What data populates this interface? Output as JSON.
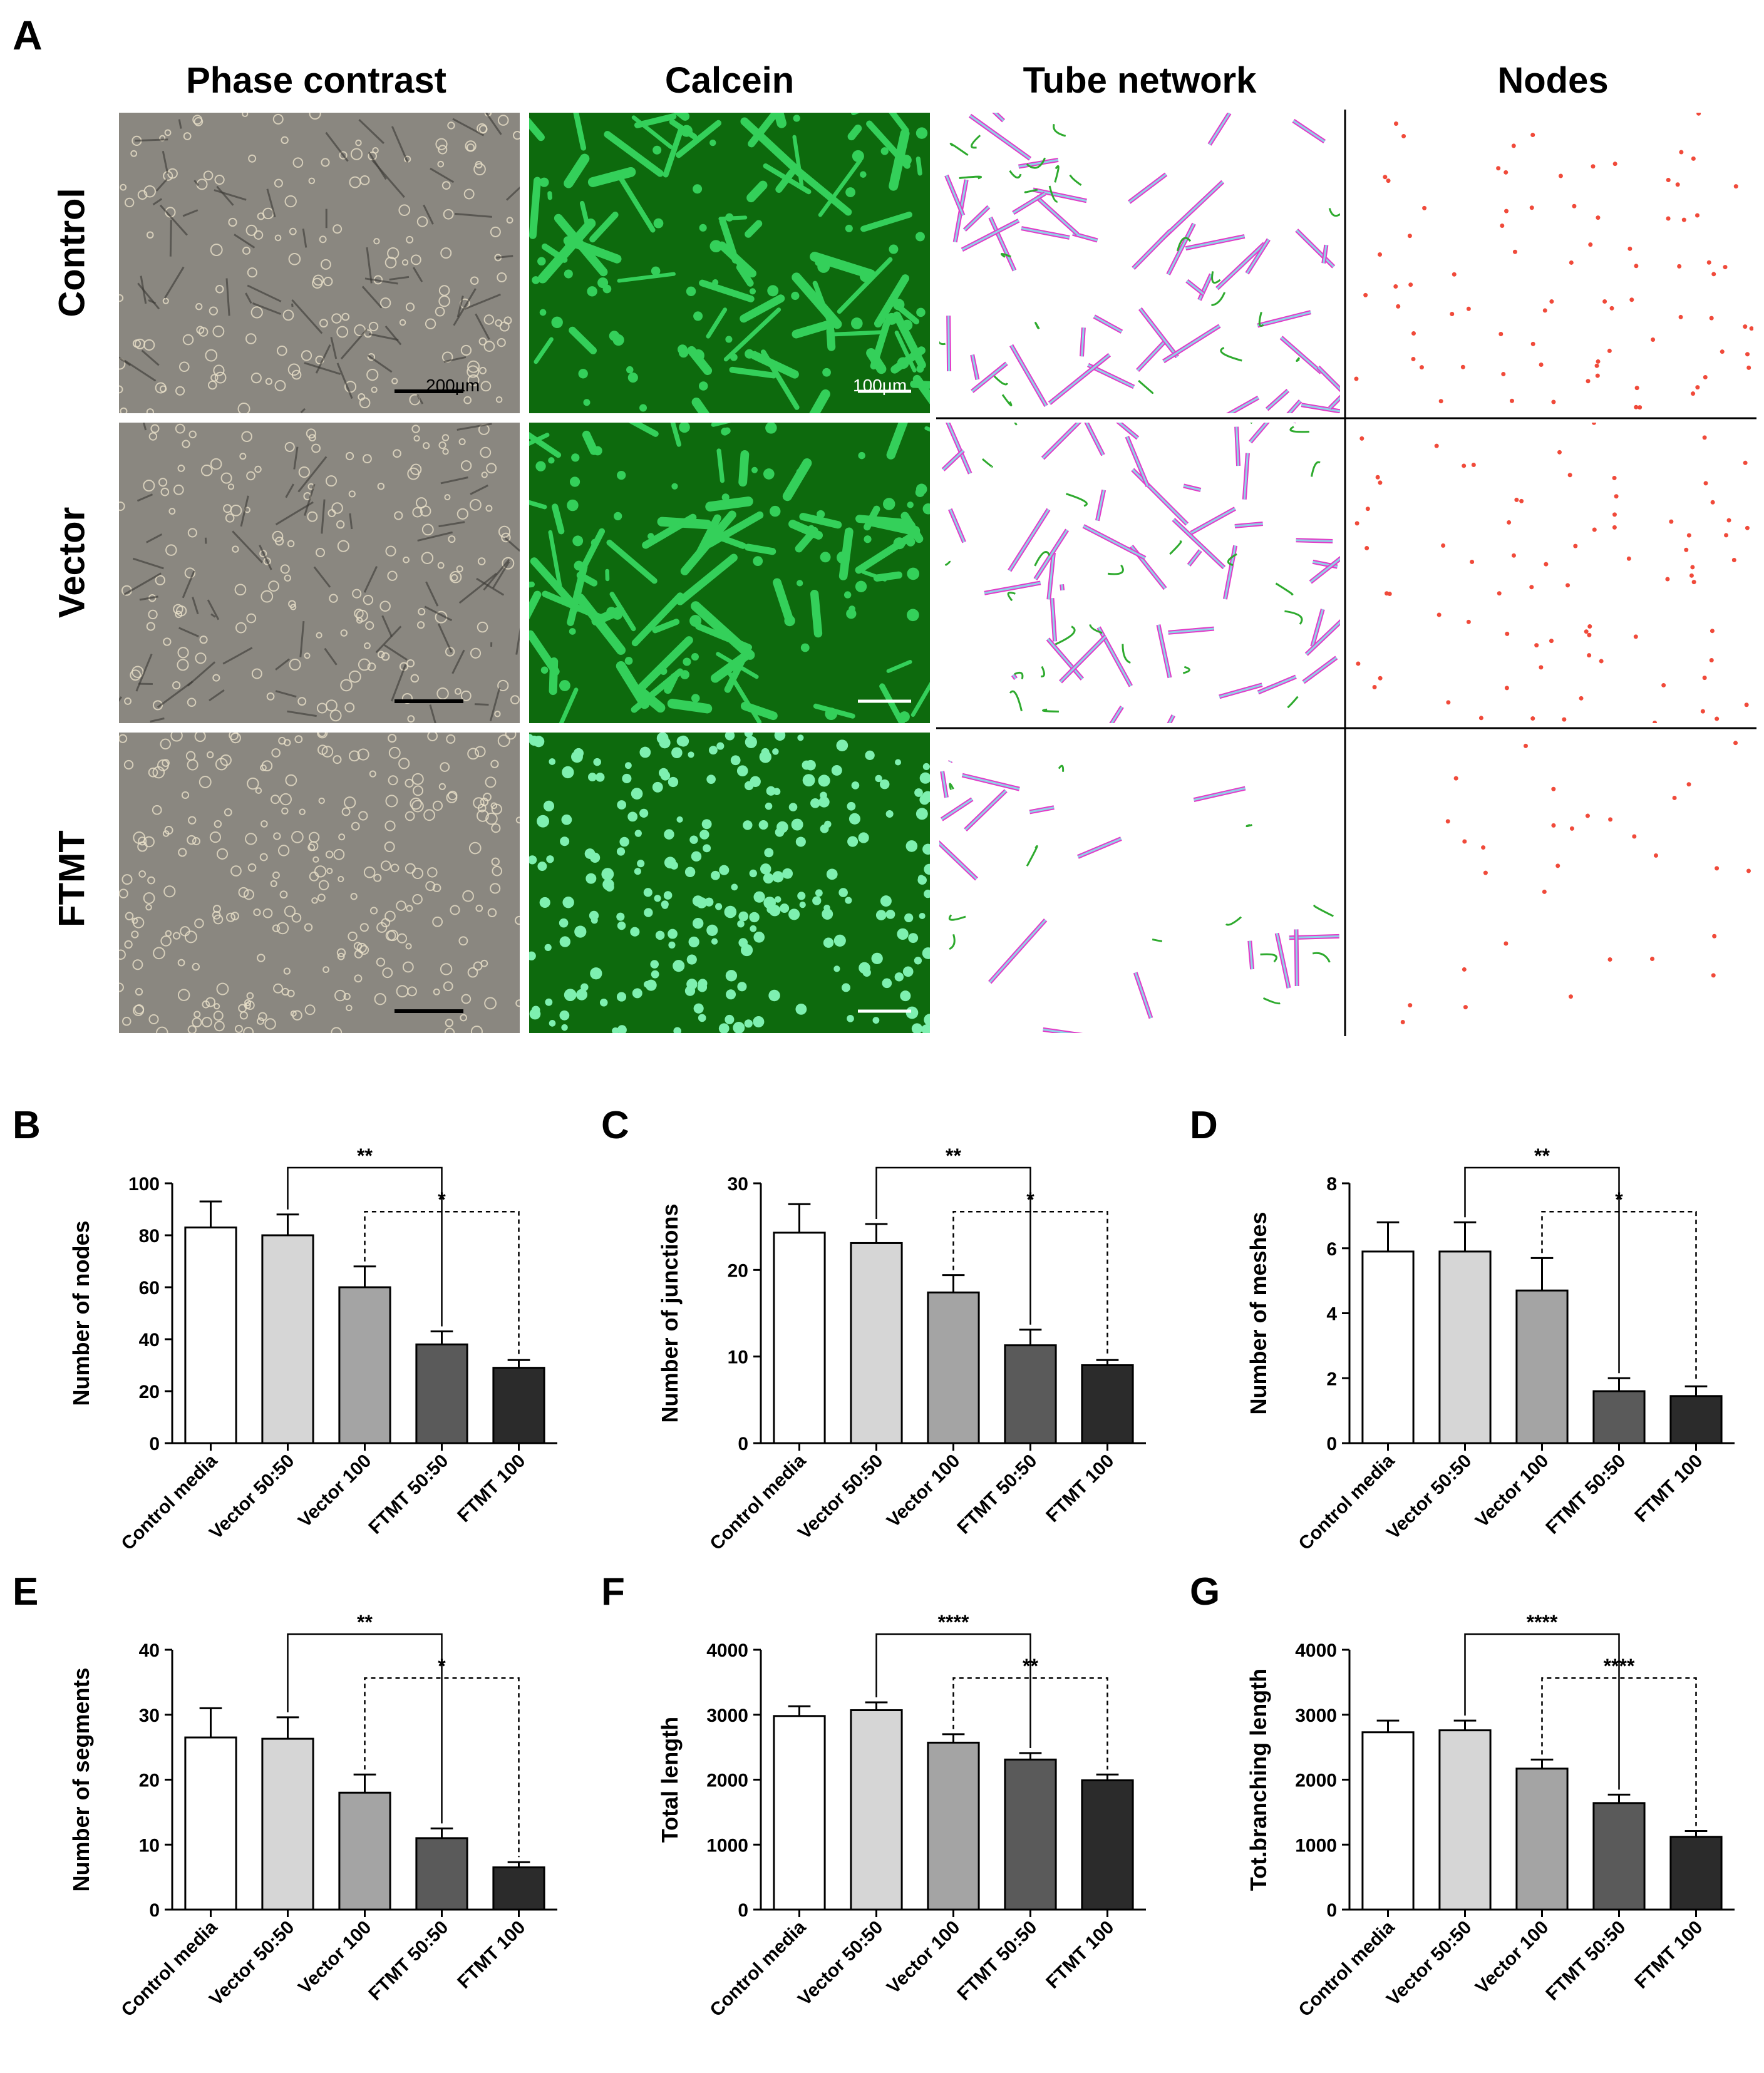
{
  "figure": {
    "panel_a_letter": "A",
    "columns": [
      "Phase contrast",
      "Calcein",
      "Tube network",
      "Nodes"
    ],
    "rows": [
      "Control",
      "Vector",
      "FTMT"
    ],
    "scale_bars": [
      "200µm",
      "100µm"
    ],
    "colors": {
      "phase_bg": "#8a8780",
      "calcein_bg": "#0d6a0d",
      "calcein_cell": "#34d05a",
      "tube_outline": "#e23cc8",
      "tube_inner": "#8fd3e8",
      "branch": "#2eaa2e",
      "node": "#f04a3a"
    }
  },
  "chart_data": [
    {
      "panel": "B",
      "type": "bar",
      "categories": [
        "Control media",
        "Vector 50:50",
        "Vector 100",
        "FTMT 50:50",
        "FTMT 100"
      ],
      "values": [
        83,
        80,
        60,
        38,
        29
      ],
      "errors": [
        10,
        8,
        8,
        5,
        3
      ],
      "ylabel": "Number of nodes",
      "ylim": [
        0,
        100
      ],
      "yticks": [
        0,
        20,
        40,
        60,
        80,
        100
      ],
      "bar_colors": [
        "#ffffff",
        "#d6d6d6",
        "#a4a4a4",
        "#5a5a5a",
        "#2b2b2b"
      ],
      "comparisons": [
        {
          "from": 1,
          "to": 3,
          "label": "**",
          "style": "solid"
        },
        {
          "from": 2,
          "to": 4,
          "label": "*",
          "style": "dashed"
        }
      ]
    },
    {
      "panel": "C",
      "type": "bar",
      "categories": [
        "Control media",
        "Vector 50:50",
        "Vector 100",
        "FTMT 50:50",
        "FTMT 100"
      ],
      "values": [
        24.3,
        23.1,
        17.4,
        11.3,
        9.0
      ],
      "errors": [
        3.3,
        2.2,
        2.0,
        1.8,
        0.6
      ],
      "ylabel": "Number of junctions",
      "ylim": [
        0,
        30
      ],
      "yticks": [
        0,
        10,
        20,
        30
      ],
      "bar_colors": [
        "#ffffff",
        "#d6d6d6",
        "#a4a4a4",
        "#5a5a5a",
        "#2b2b2b"
      ],
      "comparisons": [
        {
          "from": 1,
          "to": 3,
          "label": "**",
          "style": "solid"
        },
        {
          "from": 2,
          "to": 4,
          "label": "*",
          "style": "dashed"
        }
      ]
    },
    {
      "panel": "D",
      "type": "bar",
      "categories": [
        "Control media",
        "Vector 50:50",
        "Vector 100",
        "FTMT 50:50",
        "FTMT 100"
      ],
      "values": [
        5.9,
        5.9,
        4.7,
        1.6,
        1.45
      ],
      "errors": [
        0.9,
        0.9,
        1.0,
        0.4,
        0.3
      ],
      "ylabel": "Number of meshes",
      "ylim": [
        0,
        8
      ],
      "yticks": [
        0,
        2,
        4,
        6,
        8
      ],
      "bar_colors": [
        "#ffffff",
        "#d6d6d6",
        "#a4a4a4",
        "#5a5a5a",
        "#2b2b2b"
      ],
      "comparisons": [
        {
          "from": 1,
          "to": 3,
          "label": "**",
          "style": "solid"
        },
        {
          "from": 2,
          "to": 4,
          "label": "*",
          "style": "dashed"
        }
      ]
    },
    {
      "panel": "E",
      "type": "bar",
      "categories": [
        "Control media",
        "Vector 50:50",
        "Vector 100",
        "FTMT 50:50",
        "FTMT 100"
      ],
      "values": [
        26.5,
        26.3,
        18,
        11,
        6.5
      ],
      "errors": [
        4.5,
        3.3,
        2.8,
        1.5,
        0.8
      ],
      "ylabel": "Number of segments",
      "ylim": [
        0,
        40
      ],
      "yticks": [
        0,
        10,
        20,
        30,
        40
      ],
      "bar_colors": [
        "#ffffff",
        "#d6d6d6",
        "#a4a4a4",
        "#5a5a5a",
        "#2b2b2b"
      ],
      "comparisons": [
        {
          "from": 1,
          "to": 3,
          "label": "**",
          "style": "solid"
        },
        {
          "from": 2,
          "to": 4,
          "label": "*",
          "style": "dashed"
        }
      ]
    },
    {
      "panel": "F",
      "type": "bar",
      "categories": [
        "Control media",
        "Vector 50:50",
        "Vector 100",
        "FTMT 50:50",
        "FTMT 100"
      ],
      "values": [
        2980,
        3070,
        2570,
        2310,
        1990
      ],
      "errors": [
        150,
        120,
        130,
        100,
        90
      ],
      "ylabel": "Total length",
      "ylim": [
        0,
        4000
      ],
      "yticks": [
        0,
        1000,
        2000,
        3000,
        4000
      ],
      "bar_colors": [
        "#ffffff",
        "#d6d6d6",
        "#a4a4a4",
        "#5a5a5a",
        "#2b2b2b"
      ],
      "comparisons": [
        {
          "from": 1,
          "to": 3,
          "label": "****",
          "style": "solid"
        },
        {
          "from": 2,
          "to": 4,
          "label": "**",
          "style": "dashed"
        }
      ]
    },
    {
      "panel": "G",
      "type": "bar",
      "categories": [
        "Control media",
        "Vector 50:50",
        "Vector 100",
        "FTMT 50:50",
        "FTMT 100"
      ],
      "values": [
        2730,
        2760,
        2170,
        1640,
        1120
      ],
      "errors": [
        180,
        150,
        140,
        130,
        90
      ],
      "ylabel": "Tot.branching length",
      "ylim": [
        0,
        4000
      ],
      "yticks": [
        0,
        1000,
        2000,
        3000,
        4000
      ],
      "bar_colors": [
        "#ffffff",
        "#d6d6d6",
        "#a4a4a4",
        "#5a5a5a",
        "#2b2b2b"
      ],
      "comparisons": [
        {
          "from": 1,
          "to": 3,
          "label": "****",
          "style": "solid"
        },
        {
          "from": 2,
          "to": 4,
          "label": "****",
          "style": "dashed"
        }
      ]
    }
  ]
}
